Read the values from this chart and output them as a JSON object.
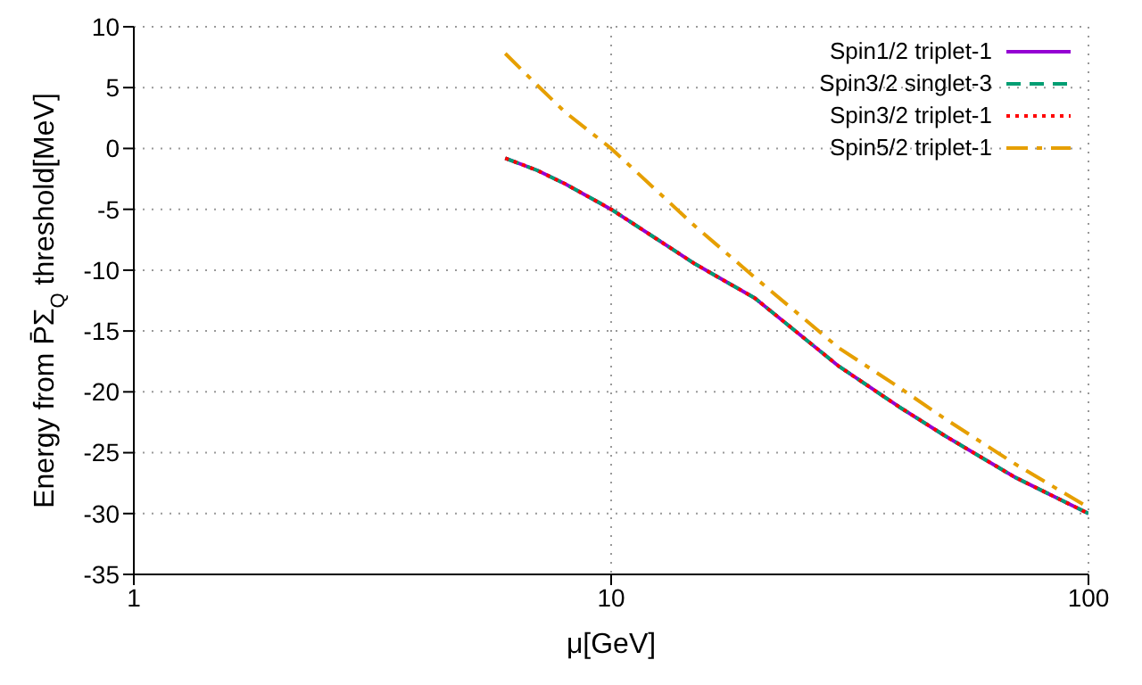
{
  "chart_data": {
    "type": "line",
    "xlabel": "μ[GeV]",
    "ylabel": "Energy from P̄Σ$_{Q}$ threshold[MeV]",
    "x": [
      6,
      7,
      8,
      10,
      15,
      20,
      30,
      40,
      50,
      70,
      100
    ],
    "series": [
      {
        "name": "Spin1/2 triplet-1",
        "color": "#9400d3",
        "line_style": "solid",
        "values": [
          -0.8,
          -1.8,
          -2.9,
          -5.0,
          -9.5,
          -12.3,
          -17.9,
          -21.2,
          -23.6,
          -27.0,
          -30.0
        ]
      },
      {
        "name": "Spin3/2 singlet-3",
        "color": "#009e73",
        "line_style": "dashed",
        "values": [
          -0.8,
          -1.8,
          -2.9,
          -5.0,
          -9.5,
          -12.3,
          -17.9,
          -21.2,
          -23.6,
          -27.0,
          -30.0
        ]
      },
      {
        "name": "Spin3/2 triplet-1",
        "color": "#ff0000",
        "line_style": "dotted",
        "values": [
          -0.8,
          -1.8,
          -2.9,
          -5.0,
          -9.5,
          -12.3,
          -17.9,
          -21.2,
          -23.6,
          -27.0,
          -30.0
        ]
      },
      {
        "name": "Spin5/2 triplet-1",
        "color": "#e69f00",
        "line_style": "dashdot",
        "values": [
          7.8,
          5.2,
          3.0,
          0.0,
          -6.4,
          -10.6,
          -16.4,
          -19.6,
          -22.2,
          -25.9,
          -29.5
        ]
      }
    ],
    "log": "x",
    "xlim": [
      1,
      100
    ],
    "xticks": [
      1,
      10,
      100
    ],
    "ylim": [
      -35,
      10
    ],
    "yticks": [
      -35,
      -30,
      -25,
      -20,
      -15,
      -10,
      -5,
      0,
      5,
      10
    ],
    "grid": true,
    "legend": "top right",
    "marker": "none"
  }
}
